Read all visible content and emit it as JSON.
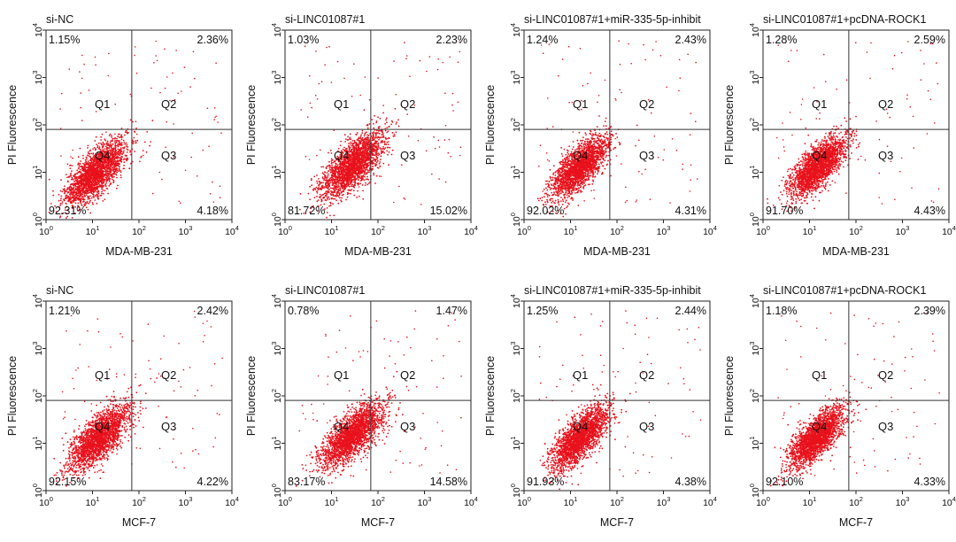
{
  "chart_data": {
    "type": "scatter",
    "axis_scale": "log",
    "x_range": [
      1,
      10000
    ],
    "y_range": [
      1,
      10000
    ],
    "tick_base": "10",
    "tick_exponents": [
      "0",
      "1",
      "2",
      "3",
      "4"
    ],
    "ylabel": "PI Fluorescence",
    "quadrant_labels": [
      "Q1",
      "Q2",
      "Q3",
      "Q4"
    ],
    "gate": {
      "x": 70,
      "y": 80
    },
    "point_color": "#e8121c",
    "panels": [
      {
        "title": "si-NC",
        "xlabel": "MDA-MB-231",
        "q1": "1.15%",
        "q2": "2.36%",
        "q3": "4.18%",
        "q4": "92.31%",
        "q1_value": 1.15,
        "q2_value": 2.36,
        "q3_value": 4.18,
        "q4_value": 92.31,
        "cluster_center": [
          12,
          10
        ],
        "spread": [
          0.32,
          0.34
        ]
      },
      {
        "title": "si-LINC01087#1",
        "xlabel": "MDA-MB-231",
        "q1": "1.03%",
        "q2": "2.23%",
        "q3": "15.02%",
        "q4": "81.72%",
        "q1_value": 1.03,
        "q2_value": 2.23,
        "q3_value": 15.02,
        "q4_value": 81.72,
        "cluster_center": [
          28,
          14
        ],
        "spread": [
          0.34,
          0.35
        ]
      },
      {
        "title": "si-LINC01087#1+miR-335-5p-inhibit",
        "xlabel": "MDA-MB-231",
        "q1": "1.24%",
        "q2": "2.43%",
        "q3": "4.31%",
        "q4": "92.02%",
        "q1_value": 1.24,
        "q2_value": 2.43,
        "q3_value": 4.31,
        "q4_value": 92.02,
        "cluster_center": [
          16,
          13
        ],
        "spread": [
          0.3,
          0.33
        ]
      },
      {
        "title": "si-LINC01087#1+pcDNA-ROCK1",
        "xlabel": "MDA-MB-231",
        "q1": "1.28%",
        "q2": "2.59%",
        "q3": "4.43%",
        "q4": "91.70%",
        "q1_value": 1.28,
        "q2_value": 2.59,
        "q3_value": 4.43,
        "q4_value": 91.7,
        "cluster_center": [
          15,
          13
        ],
        "spread": [
          0.3,
          0.32
        ]
      },
      {
        "title": "si-NC",
        "xlabel": "MCF-7",
        "q1": "1.21%",
        "q2": "2.42%",
        "q3": "4.22%",
        "q4": "92.15%",
        "q1_value": 1.21,
        "q2_value": 2.42,
        "q3_value": 4.22,
        "q4_value": 92.15,
        "cluster_center": [
          14,
          13
        ],
        "spread": [
          0.32,
          0.34
        ]
      },
      {
        "title": "si-LINC01087#1",
        "xlabel": "MCF-7",
        "q1": "0.78%",
        "q2": "1.47%",
        "q3": "14.58%",
        "q4": "83.17%",
        "q1_value": 0.78,
        "q2_value": 1.47,
        "q3_value": 14.58,
        "q4_value": 83.17,
        "cluster_center": [
          28,
          15
        ],
        "spread": [
          0.34,
          0.34
        ]
      },
      {
        "title": "si-LINC01087#1+miR-335-5p-inhibit",
        "xlabel": "MCF-7",
        "q1": "1.25%",
        "q2": "2.44%",
        "q3": "4.38%",
        "q4": "91.93%",
        "q1_value": 1.25,
        "q2_value": 2.44,
        "q3_value": 4.38,
        "q4_value": 91.93,
        "cluster_center": [
          16,
          13
        ],
        "spread": [
          0.3,
          0.33
        ]
      },
      {
        "title": "si-LINC01087#1+pcDNA-ROCK1",
        "xlabel": "MCF-7",
        "q1": "1.18%",
        "q2": "2.39%",
        "q3": "4.33%",
        "q4": "92.10%",
        "q1_value": 1.18,
        "q2_value": 2.39,
        "q3_value": 4.33,
        "q4_value": 92.1,
        "cluster_center": [
          14,
          13
        ],
        "spread": [
          0.3,
          0.32
        ]
      }
    ]
  }
}
